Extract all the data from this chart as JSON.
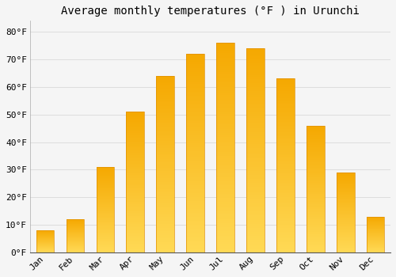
{
  "title": "Average monthly temperatures (°F ) in Urunchi",
  "months": [
    "Jan",
    "Feb",
    "Mar",
    "Apr",
    "May",
    "Jun",
    "Jul",
    "Aug",
    "Sep",
    "Oct",
    "Nov",
    "Dec"
  ],
  "values": [
    8,
    12,
    31,
    51,
    64,
    72,
    76,
    74,
    63,
    46,
    29,
    13
  ],
  "bar_color_top": "#F5A800",
  "bar_color_bottom": "#FFD966",
  "background_color": "#f5f5f5",
  "grid_color": "#dddddd",
  "ylim": [
    0,
    84
  ],
  "yticks": [
    0,
    10,
    20,
    30,
    40,
    50,
    60,
    70,
    80
  ],
  "ytick_labels": [
    "0°F",
    "10°F",
    "20°F",
    "30°F",
    "40°F",
    "50°F",
    "60°F",
    "70°F",
    "80°F"
  ],
  "title_fontsize": 10,
  "tick_fontsize": 8,
  "font_family": "monospace",
  "bar_width": 0.6
}
